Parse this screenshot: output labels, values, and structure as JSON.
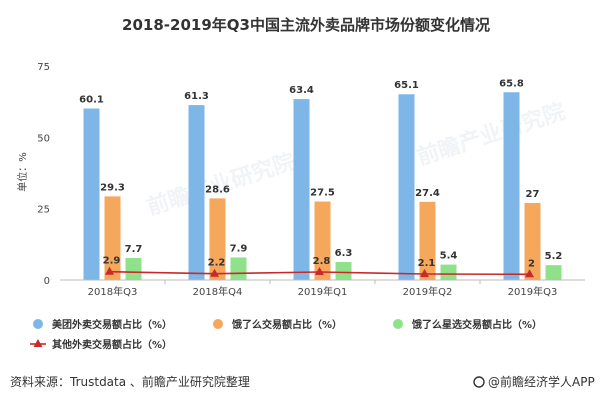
{
  "chart_data": {
    "type": "bar",
    "title": "2018-2019年Q3中国主流外卖品牌市场份额变化情况",
    "ylabel": "单位：%",
    "ylim": [
      0,
      75
    ],
    "yticks": [
      0,
      25,
      50,
      75
    ],
    "categories": [
      "2018年Q3",
      "2018年Q4",
      "2019年Q1",
      "2019年Q2",
      "2019年Q3"
    ],
    "series": [
      {
        "name": "美团外卖交易额占比（%）",
        "kind": "bar",
        "color": "#7eb6e8",
        "values": [
          60.1,
          61.3,
          63.4,
          65.1,
          65.8
        ]
      },
      {
        "name": "饿了么交易额占比（%）",
        "kind": "bar",
        "color": "#f5a75c",
        "values": [
          29.3,
          28.6,
          27.5,
          27.4,
          27
        ]
      },
      {
        "name": "饿了么星选交易额占比（%）",
        "kind": "bar",
        "color": "#8fe28a",
        "values": [
          7.7,
          7.9,
          6.3,
          5.4,
          5.2
        ]
      },
      {
        "name": "其他外卖交易额占比（%）",
        "kind": "line",
        "color": "#c82a2a",
        "values": [
          2.9,
          2.2,
          2.8,
          2.1,
          2
        ]
      }
    ],
    "grid": false,
    "legend": "bottom"
  },
  "footer": {
    "source": "资料来源：Trustdata 、前瞻产业研究院整理",
    "brand": "@前瞻经济学人APP"
  },
  "watermark": {
    "text": "前瞻产业研究院"
  }
}
